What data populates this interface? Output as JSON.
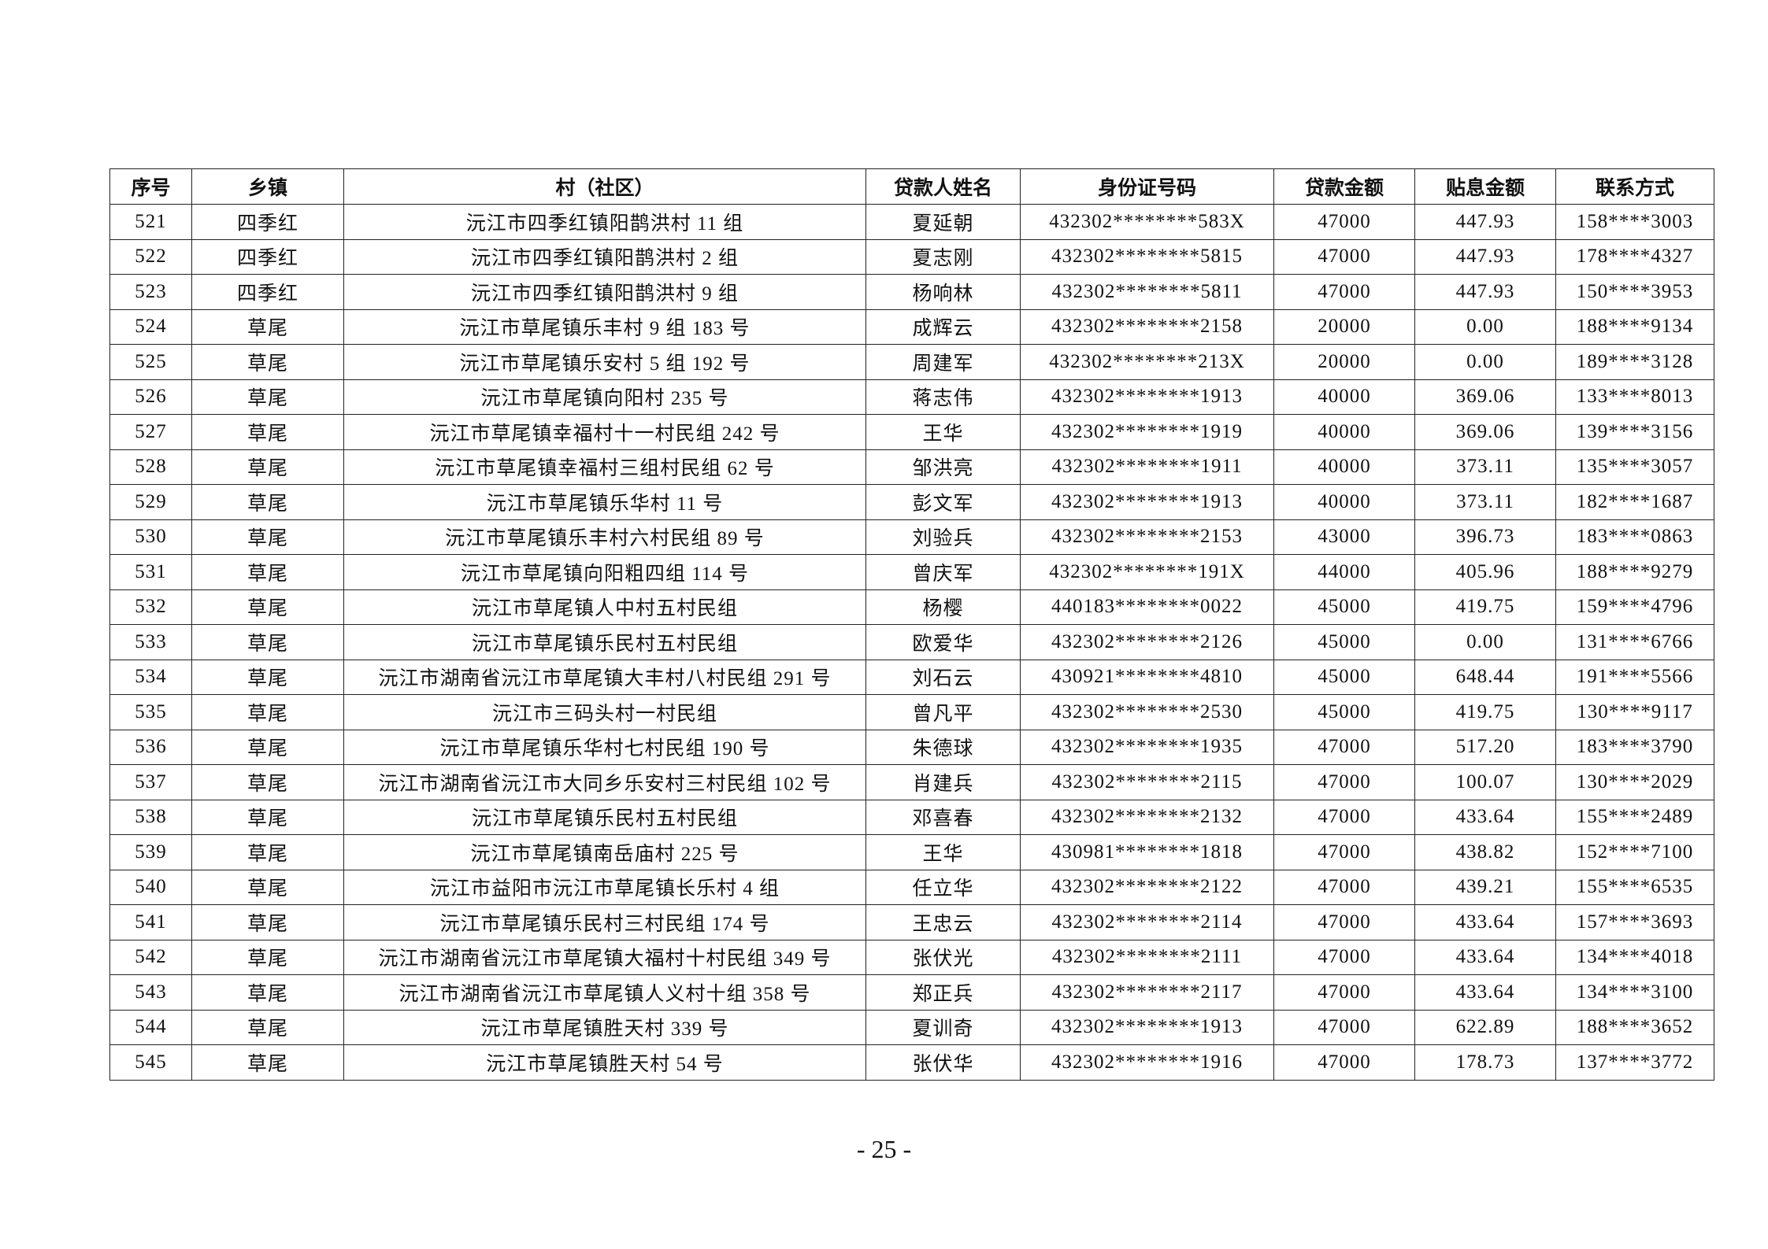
{
  "table": {
    "headers": [
      "序号",
      "乡镇",
      "村（社区）",
      "贷款人姓名",
      "身份证号码",
      "贷款金额",
      "贴息金额",
      "联系方式"
    ],
    "rows": [
      [
        "521",
        "四季红",
        "沅江市四季红镇阳鹊洪村 11 组",
        "夏延朝",
        "432302********583X",
        "47000",
        "447.93",
        "158****3003"
      ],
      [
        "522",
        "四季红",
        "沅江市四季红镇阳鹊洪村 2 组",
        "夏志刚",
        "432302********5815",
        "47000",
        "447.93",
        "178****4327"
      ],
      [
        "523",
        "四季红",
        "沅江市四季红镇阳鹊洪村 9 组",
        "杨响林",
        "432302********5811",
        "47000",
        "447.93",
        "150****3953"
      ],
      [
        "524",
        "草尾",
        "沅江市草尾镇乐丰村 9 组 183 号",
        "成辉云",
        "432302********2158",
        "20000",
        "0.00",
        "188****9134"
      ],
      [
        "525",
        "草尾",
        "沅江市草尾镇乐安村 5 组 192 号",
        "周建军",
        "432302********213X",
        "20000",
        "0.00",
        "189****3128"
      ],
      [
        "526",
        "草尾",
        "沅江市草尾镇向阳村 235 号",
        "蒋志伟",
        "432302********1913",
        "40000",
        "369.06",
        "133****8013"
      ],
      [
        "527",
        "草尾",
        "沅江市草尾镇幸福村十一村民组 242 号",
        "王华",
        "432302********1919",
        "40000",
        "369.06",
        "139****3156"
      ],
      [
        "528",
        "草尾",
        "沅江市草尾镇幸福村三组村民组 62 号",
        "邹洪亮",
        "432302********1911",
        "40000",
        "373.11",
        "135****3057"
      ],
      [
        "529",
        "草尾",
        "沅江市草尾镇乐华村 11 号",
        "彭文军",
        "432302********1913",
        "40000",
        "373.11",
        "182****1687"
      ],
      [
        "530",
        "草尾",
        "沅江市草尾镇乐丰村六村民组 89 号",
        "刘验兵",
        "432302********2153",
        "43000",
        "396.73",
        "183****0863"
      ],
      [
        "531",
        "草尾",
        "沅江市草尾镇向阳粗四组 114 号",
        "曾庆军",
        "432302********191X",
        "44000",
        "405.96",
        "188****9279"
      ],
      [
        "532",
        "草尾",
        "沅江市草尾镇人中村五村民组",
        "杨樱",
        "440183********0022",
        "45000",
        "419.75",
        "159****4796"
      ],
      [
        "533",
        "草尾",
        "沅江市草尾镇乐民村五村民组",
        "欧爱华",
        "432302********2126",
        "45000",
        "0.00",
        "131****6766"
      ],
      [
        "534",
        "草尾",
        "沅江市湖南省沅江市草尾镇大丰村八村民组 291 号",
        "刘石云",
        "430921********4810",
        "45000",
        "648.44",
        "191****5566"
      ],
      [
        "535",
        "草尾",
        "沅江市三码头村一村民组",
        "曾凡平",
        "432302********2530",
        "45000",
        "419.75",
        "130****9117"
      ],
      [
        "536",
        "草尾",
        "沅江市草尾镇乐华村七村民组 190 号",
        "朱德球",
        "432302********1935",
        "47000",
        "517.20",
        "183****3790"
      ],
      [
        "537",
        "草尾",
        "沅江市湖南省沅江市大同乡乐安村三村民组 102 号",
        "肖建兵",
        "432302********2115",
        "47000",
        "100.07",
        "130****2029"
      ],
      [
        "538",
        "草尾",
        "沅江市草尾镇乐民村五村民组",
        "邓喜春",
        "432302********2132",
        "47000",
        "433.64",
        "155****2489"
      ],
      [
        "539",
        "草尾",
        "沅江市草尾镇南岳庙村 225 号",
        "王华",
        "430981********1818",
        "47000",
        "438.82",
        "152****7100"
      ],
      [
        "540",
        "草尾",
        "沅江市益阳市沅江市草尾镇长乐村 4 组",
        "任立华",
        "432302********2122",
        "47000",
        "439.21",
        "155****6535"
      ],
      [
        "541",
        "草尾",
        "沅江市草尾镇乐民村三村民组 174 号",
        "王忠云",
        "432302********2114",
        "47000",
        "433.64",
        "157****3693"
      ],
      [
        "542",
        "草尾",
        "沅江市湖南省沅江市草尾镇大福村十村民组 349 号",
        "张伏光",
        "432302********2111",
        "47000",
        "433.64",
        "134****4018"
      ],
      [
        "543",
        "草尾",
        "沅江市湖南省沅江市草尾镇人义村十组 358 号",
        "郑正兵",
        "432302********2117",
        "47000",
        "433.64",
        "134****3100"
      ],
      [
        "544",
        "草尾",
        "沅江市草尾镇胜天村 339 号",
        "夏训奇",
        "432302********1913",
        "47000",
        "622.89",
        "188****3652"
      ],
      [
        "545",
        "草尾",
        "沅江市草尾镇胜天村 54 号",
        "张伏华",
        "432302********1916",
        "47000",
        "178.73",
        "137****3772"
      ]
    ]
  },
  "page_number": "- 25 -"
}
